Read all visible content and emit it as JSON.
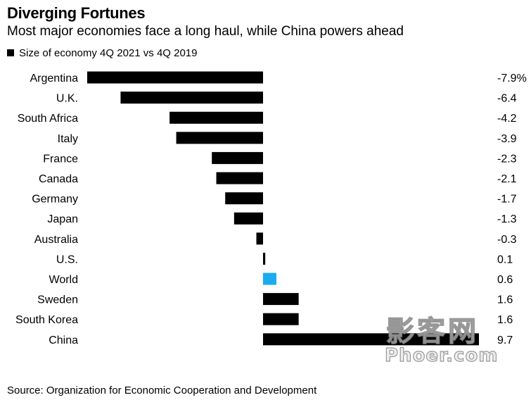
{
  "chart_data": {
    "type": "bar",
    "orientation": "horizontal",
    "title": "Diverging Fortunes",
    "subtitle": "Most major economies face a long haul, while China powers ahead",
    "legend_label": "Size of economy 4Q 2021 vs 4Q 2019",
    "legend_placement": "top-left",
    "categories": [
      "Argentina",
      "U.K.",
      "South Africa",
      "Italy",
      "France",
      "Canada",
      "Germany",
      "Japan",
      "Australia",
      "U.S.",
      "World",
      "Sweden",
      "South Korea",
      "China"
    ],
    "values": [
      -7.9,
      -6.4,
      -4.2,
      -3.9,
      -2.3,
      -2.1,
      -1.7,
      -1.3,
      -0.3,
      0.1,
      0.6,
      1.6,
      1.6,
      9.7
    ],
    "value_labels": [
      "-7.9%",
      "-6.4",
      "-4.2",
      "-3.9",
      "-2.3",
      "-2.1",
      "-1.7",
      "-1.3",
      "-0.3",
      "0.1",
      "0.6",
      "1.6",
      "1.6",
      "9.7"
    ],
    "xlim": [
      -7.9,
      9.7
    ],
    "grid": false,
    "bar_color": "#000000",
    "highlight_category": "World",
    "highlight_color": "#1aabf0"
  },
  "source": "Source: Organization for Economic Cooperation and Development",
  "watermark": {
    "line1": "影客网",
    "line2": "Phoer.com"
  }
}
